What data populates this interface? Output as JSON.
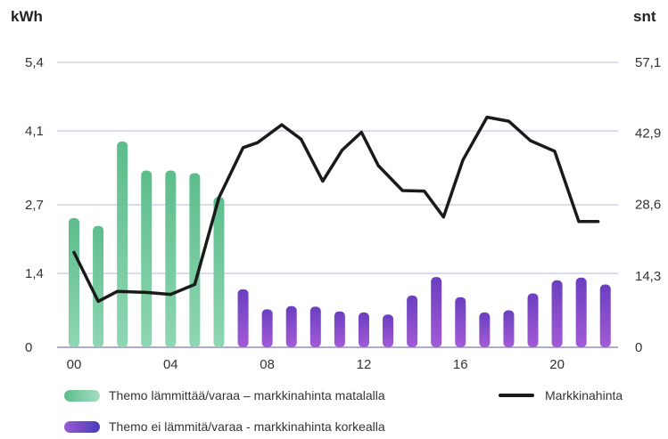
{
  "chart_data": {
    "type": "bar",
    "left_unit": "kWh",
    "right_unit": "snt",
    "y_left": {
      "min": 0,
      "max": 5.4,
      "ticks": [
        "0",
        "1,4",
        "2,7",
        "4,1",
        "5,4"
      ],
      "tick_values": [
        0,
        1.4,
        2.7,
        4.1,
        5.4
      ]
    },
    "y_right": {
      "min": 0,
      "max": 57.1,
      "ticks": [
        "0",
        "14,3",
        "28,6",
        "42,9",
        "57,1"
      ],
      "tick_values": [
        0,
        14.3,
        28.6,
        42.9,
        57.1
      ]
    },
    "x": {
      "hours": [
        0,
        1,
        2,
        3,
        4,
        5,
        6,
        7,
        8,
        9,
        10,
        11,
        12,
        13,
        14,
        15,
        16,
        17,
        18,
        19,
        20,
        21,
        22
      ],
      "tick_labels": [
        "00",
        "04",
        "08",
        "12",
        "16",
        "20"
      ],
      "tick_hours": [
        0,
        4,
        8,
        12,
        16,
        20
      ]
    },
    "grid": true,
    "series": [
      {
        "name": "Themo lämmittää/varaa – markkinahinta matalalla",
        "kind": "bar",
        "axis": "left",
        "color": "#6cc59a",
        "hours": [
          0,
          1,
          2,
          3,
          4,
          5,
          6
        ],
        "values": [
          2.45,
          2.3,
          3.9,
          3.35,
          3.35,
          3.3,
          2.85
        ]
      },
      {
        "name": "Themo ei lämmitä/varaa - markkinahinta korkealla",
        "kind": "bar",
        "axis": "left",
        "color": "#8e4bd0",
        "hours": [
          7,
          8,
          9,
          10,
          11,
          12,
          13,
          14,
          15,
          16,
          17,
          18,
          19,
          20,
          21,
          22
        ],
        "values": [
          1.1,
          0.72,
          0.78,
          0.77,
          0.68,
          0.66,
          0.62,
          0.98,
          1.33,
          0.95,
          0.66,
          0.7,
          1.02,
          1.27,
          1.32,
          1.19
        ]
      },
      {
        "name": "Markkinahinta",
        "kind": "line",
        "axis": "right",
        "color": "#1a1a1a",
        "x": [
          0,
          1,
          1.8,
          3,
          4,
          5,
          6,
          7,
          7.6,
          8.6,
          9.4,
          10.3,
          11.1,
          11.9,
          12.6,
          13.6,
          14.5,
          15.3,
          16.1,
          17.1,
          18,
          18.9,
          19.9,
          20.9,
          21.7
        ],
        "values": [
          19,
          9.2,
          11.2,
          11,
          10.6,
          12.6,
          30,
          40,
          41,
          44.6,
          41.7,
          33.3,
          39.5,
          43.1,
          36.4,
          31.4,
          31.3,
          26.1,
          37.5,
          46.1,
          45.3,
          41.4,
          39.3,
          25.2,
          25.2
        ]
      }
    ]
  }
}
